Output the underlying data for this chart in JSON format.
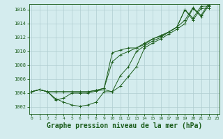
{
  "bg_color": "#d4ecee",
  "grid_color": "#b0cdd0",
  "line_color": "#1a5c1a",
  "xlabel": "Graphe pression niveau de la mer (hPa)",
  "xlabel_fontsize": 7,
  "ylabel_ticks": [
    1002,
    1004,
    1006,
    1008,
    1010,
    1012,
    1014,
    1016
  ],
  "xtick_labels": [
    "0",
    "1",
    "2",
    "3",
    "4",
    "5",
    "6",
    "7",
    "8",
    "9",
    "10",
    "11",
    "12",
    "13",
    "14",
    "15",
    "16",
    "17",
    "18",
    "19",
    "20",
    "21",
    "22",
    "23"
  ],
  "xticks": [
    0,
    1,
    2,
    3,
    4,
    5,
    6,
    7,
    8,
    9,
    10,
    11,
    12,
    13,
    14,
    15,
    16,
    17,
    18,
    19,
    20,
    21,
    22,
    23
  ],
  "xlim": [
    -0.3,
    23.3
  ],
  "ylim": [
    1001.0,
    1016.8
  ],
  "series": [
    {
      "x": [
        0,
        1,
        2,
        3,
        4,
        5,
        6,
        7,
        8,
        9,
        10,
        11,
        12,
        13,
        14,
        15,
        16,
        17,
        18,
        19,
        20,
        21,
        22
      ],
      "y": [
        1004.2,
        1004.5,
        1004.2,
        1004.2,
        1004.2,
        1004.2,
        1004.2,
        1004.2,
        1004.4,
        1004.7,
        1009.8,
        1010.2,
        1010.5,
        1010.5,
        1011.2,
        1011.8,
        1012.3,
        1012.8,
        1013.5,
        1016.0,
        1014.5,
        1016.2,
        1016.2
      ]
    },
    {
      "x": [
        0,
        1,
        2,
        3,
        4,
        5,
        6,
        7,
        8,
        9,
        10,
        11,
        12,
        13,
        14,
        15,
        16,
        17,
        18,
        19,
        20,
        21,
        22
      ],
      "y": [
        1004.2,
        1004.5,
        1004.2,
        1004.2,
        1004.2,
        1004.2,
        1004.2,
        1004.2,
        1004.4,
        1004.7,
        1008.5,
        1009.5,
        1010.0,
        1010.5,
        1011.0,
        1011.8,
        1012.2,
        1012.8,
        1013.5,
        1016.0,
        1014.8,
        1016.5,
        1016.5
      ]
    },
    {
      "x": [
        0,
        1,
        2,
        3,
        4,
        5,
        6,
        7,
        8,
        9,
        10,
        11,
        12,
        13,
        14,
        15,
        16,
        17,
        18,
        19,
        20,
        21,
        22
      ],
      "y": [
        1004.2,
        1004.5,
        1004.2,
        1003.2,
        1002.7,
        1002.3,
        1002.1,
        1002.3,
        1002.7,
        1004.2,
        1004.2,
        1005.0,
        1006.4,
        1007.8,
        1010.5,
        1011.2,
        1011.8,
        1012.5,
        1013.2,
        1014.0,
        1016.2,
        1015.0,
        1016.7
      ]
    },
    {
      "x": [
        0,
        1,
        2,
        3,
        4,
        5,
        6,
        7,
        8,
        9,
        10,
        11,
        12,
        13,
        14,
        15,
        16,
        17,
        18,
        19,
        20,
        21,
        22
      ],
      "y": [
        1004.2,
        1004.5,
        1004.2,
        1003.0,
        1003.3,
        1004.0,
        1004.0,
        1004.0,
        1004.3,
        1004.5,
        1004.2,
        1006.5,
        1007.8,
        1010.0,
        1010.8,
        1011.5,
        1012.0,
        1012.8,
        1013.5,
        1014.5,
        1016.3,
        1015.2,
        1017.0
      ]
    }
  ]
}
